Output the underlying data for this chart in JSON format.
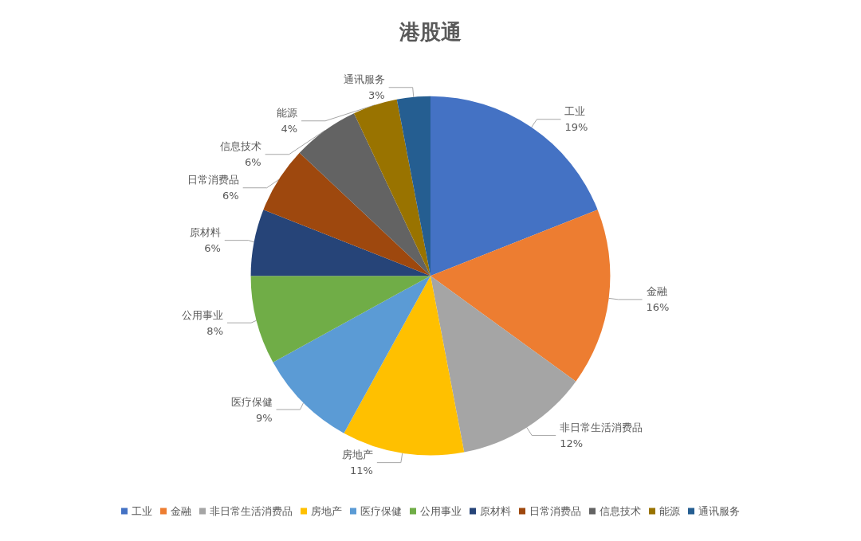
{
  "chart_data": {
    "type": "pie",
    "title": "港股通",
    "categories": [
      "工业",
      "金融",
      "非日常生活消费品",
      "房地产",
      "医疗保健",
      "公用事业",
      "原材料",
      "日常消费品",
      "信息技术",
      "能源",
      "通讯服务"
    ],
    "values": [
      19,
      16,
      12,
      11,
      9,
      8,
      6,
      6,
      6,
      4,
      3
    ],
    "value_labels": [
      "19%",
      "16%",
      "12%",
      "11%",
      "9%",
      "8%",
      "6%",
      "6%",
      "6%",
      "4%",
      "3%"
    ],
    "colors": [
      "#4472c4",
      "#ed7d31",
      "#a5a5a5",
      "#ffc000",
      "#5b9bd5",
      "#70ad47",
      "#264478",
      "#9e480e",
      "#636363",
      "#997300",
      "#255e91"
    ],
    "legend": "bottom"
  }
}
